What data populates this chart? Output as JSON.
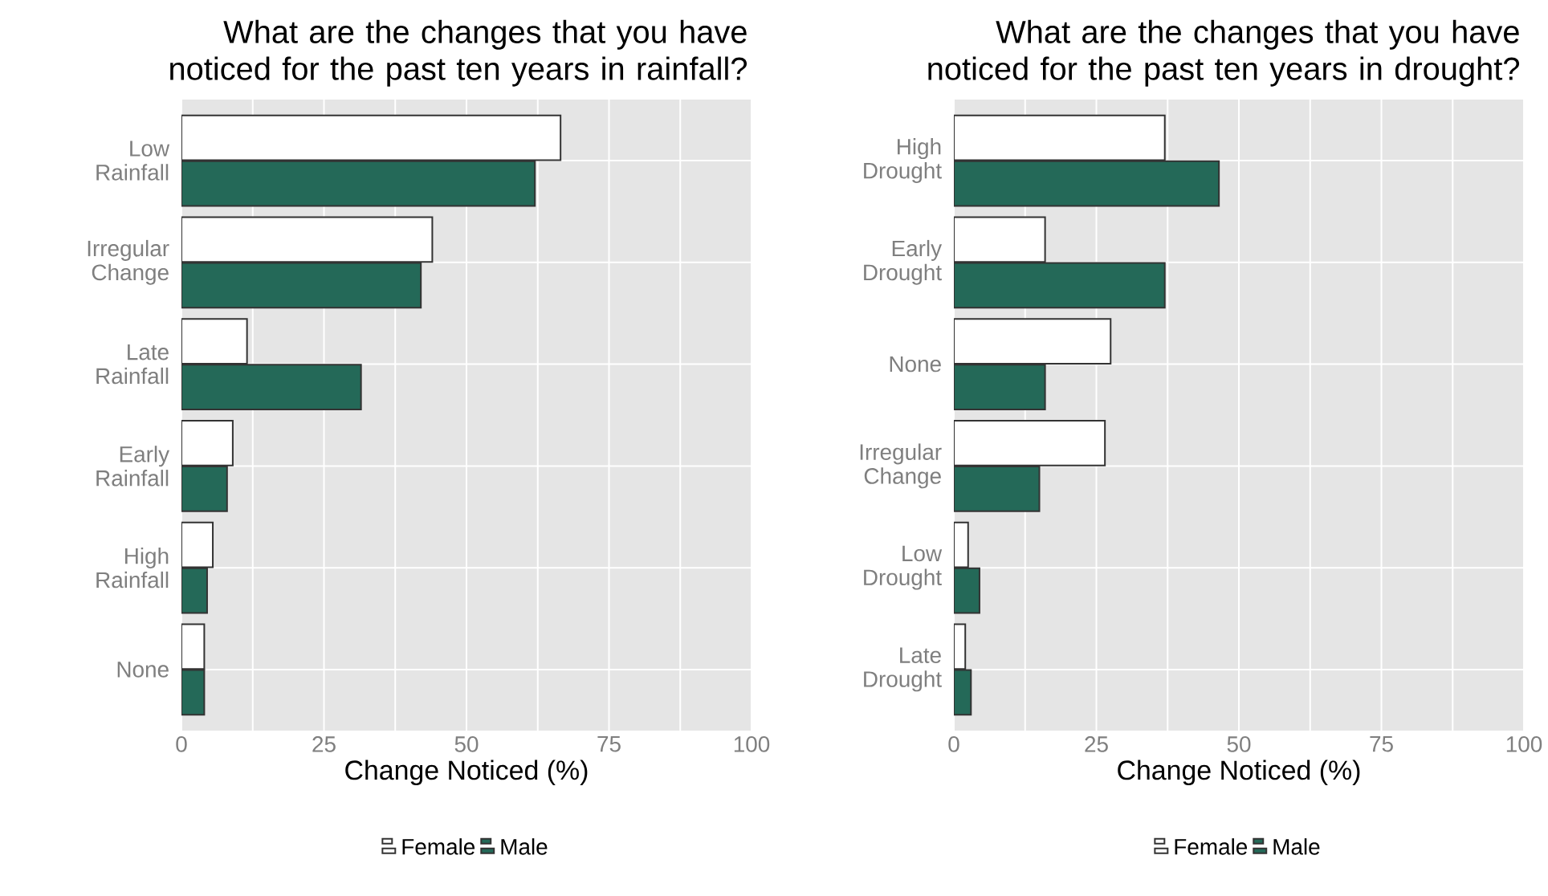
{
  "chart_data": [
    {
      "type": "bar",
      "orientation": "horizontal",
      "title": "What are the changes that you have noticed for the past ten years in rainfall?",
      "xlabel": "Change Noticed (%)",
      "categories": [
        "Low Rainfall",
        "Irregular Change",
        "Late Rainfall",
        "Early Rainfall",
        "High Rainfall",
        "None"
      ],
      "series": [
        {
          "name": "Female",
          "color": "#ffffff",
          "values": [
            66.5,
            44,
            11.5,
            9,
            5.5,
            4
          ]
        },
        {
          "name": "Male",
          "color": "#246958",
          "values": [
            62,
            42,
            31.5,
            8,
            4.5,
            4
          ]
        }
      ],
      "xlim": [
        0,
        100
      ],
      "xticks": [
        0,
        {
          "value": 12.5,
          "label": null
        },
        25,
        {
          "value": 37.5,
          "label": null
        },
        50,
        {
          "value": 62.5,
          "label": null
        },
        75,
        {
          "value": 87.5,
          "label": null
        },
        100
      ],
      "grid": true,
      "legend": "bottom"
    },
    {
      "type": "bar",
      "orientation": "horizontal",
      "title": "What are the changes that you have noticed for the past ten years in drought?",
      "xlabel": "Change Noticed (%)",
      "categories": [
        "High Drought",
        "Early Drought",
        "None",
        "Irregular Change",
        "Low Drought",
        "Late Drought"
      ],
      "series": [
        {
          "name": "Female",
          "color": "#ffffff",
          "values": [
            37,
            16,
            27.5,
            26.5,
            2.5,
            2
          ]
        },
        {
          "name": "Male",
          "color": "#246958",
          "values": [
            46.5,
            37,
            16,
            15,
            4.5,
            3
          ]
        }
      ],
      "xlim": [
        0,
        100
      ],
      "xticks": [
        0,
        {
          "value": 12.5,
          "label": null
        },
        25,
        {
          "value": 37.5,
          "label": null
        },
        50,
        {
          "value": 62.5,
          "label": null
        },
        75,
        {
          "value": 87.5,
          "label": null
        },
        100
      ],
      "grid": true,
      "legend": "bottom"
    }
  ]
}
